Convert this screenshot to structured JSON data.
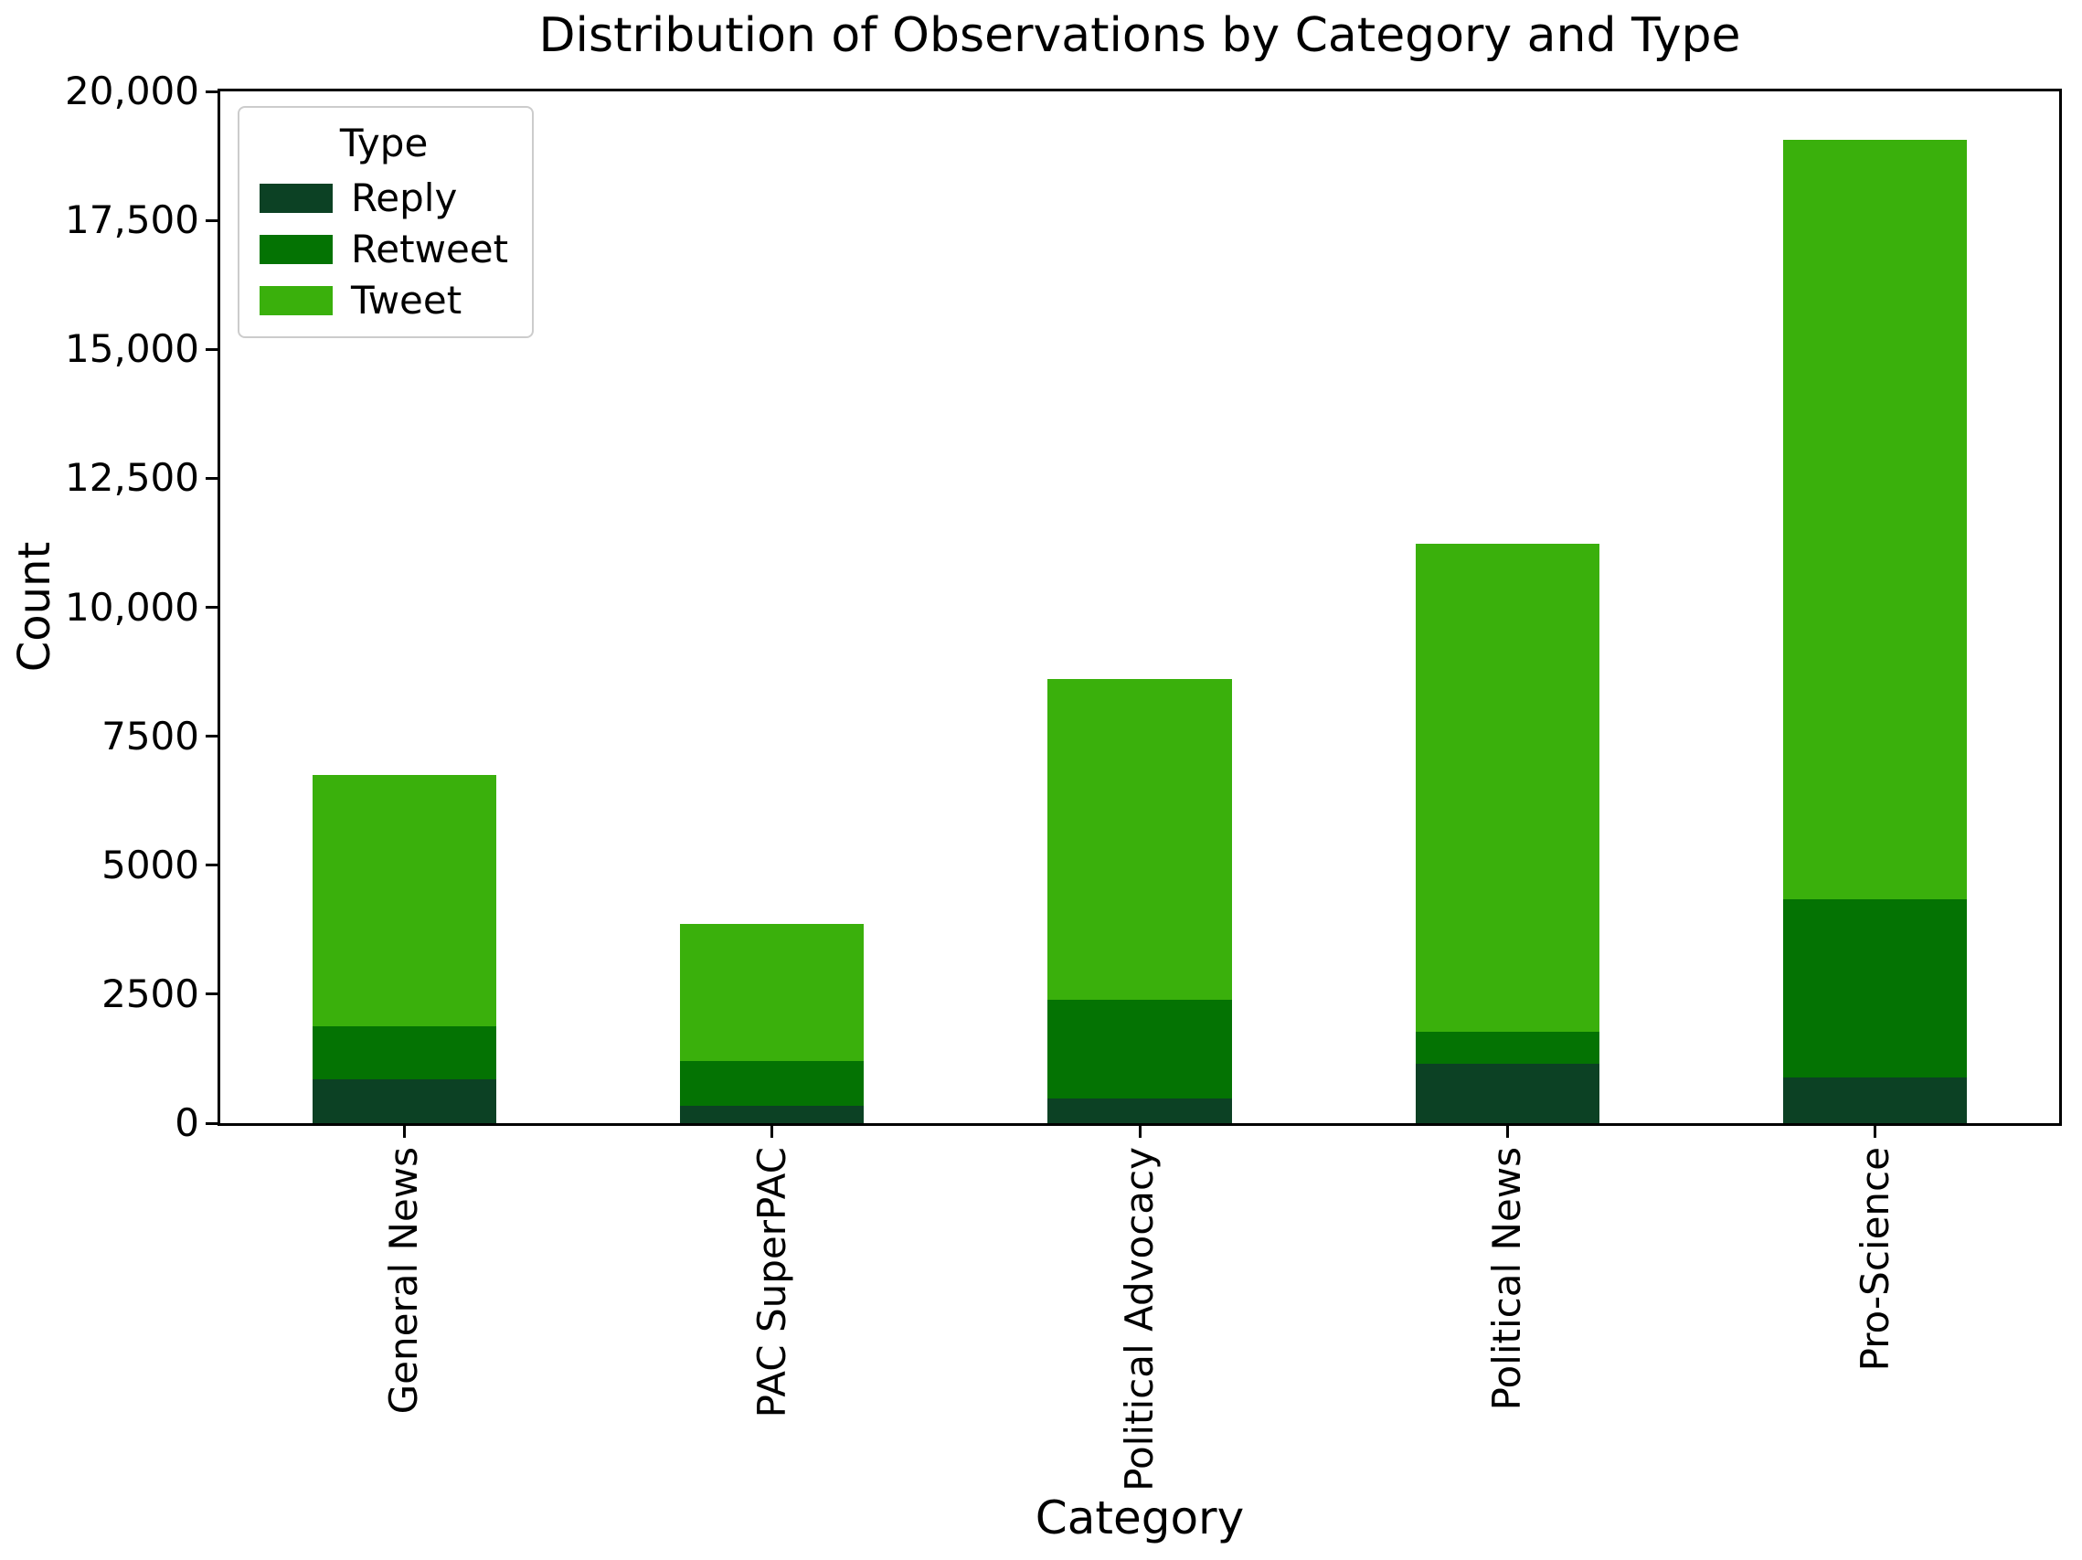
{
  "chart_data": {
    "type": "bar",
    "stacked": true,
    "title": "Distribution of Observations by Category and Type",
    "xlabel": "Category",
    "ylabel": "Count",
    "categories": [
      "General News",
      "PAC SuperPAC",
      "Political Advocacy",
      "Political News",
      "Pro-Science"
    ],
    "series": [
      {
        "name": "Reply",
        "color": "#0c4124",
        "values": [
          850,
          340,
          480,
          1150,
          890
        ]
      },
      {
        "name": "Retweet",
        "color": "#047303",
        "values": [
          1030,
          865,
          1910,
          620,
          3450
        ]
      },
      {
        "name": "Tweet",
        "color": "#3ab00c",
        "values": [
          4870,
          2655,
          6220,
          9460,
          14720
        ]
      }
    ],
    "totals": [
      6750,
      3860,
      8610,
      11230,
      19060
    ],
    "ylim": [
      0,
      20000
    ],
    "yticks": [
      0,
      2500,
      5000,
      7500,
      10000,
      12500,
      15000,
      17500,
      20000
    ],
    "ytick_labels": [
      "0",
      "2500",
      "5000",
      "7500",
      "10,000",
      "12,500",
      "15,000",
      "17,500",
      "20,000"
    ],
    "x_tick_label_rotation": 90,
    "legend_title": "Type",
    "legend_position": "upper-left",
    "grid": false,
    "bar_width_fraction": 0.5,
    "background_color": "#ffffff",
    "axis_color": "#000000"
  }
}
